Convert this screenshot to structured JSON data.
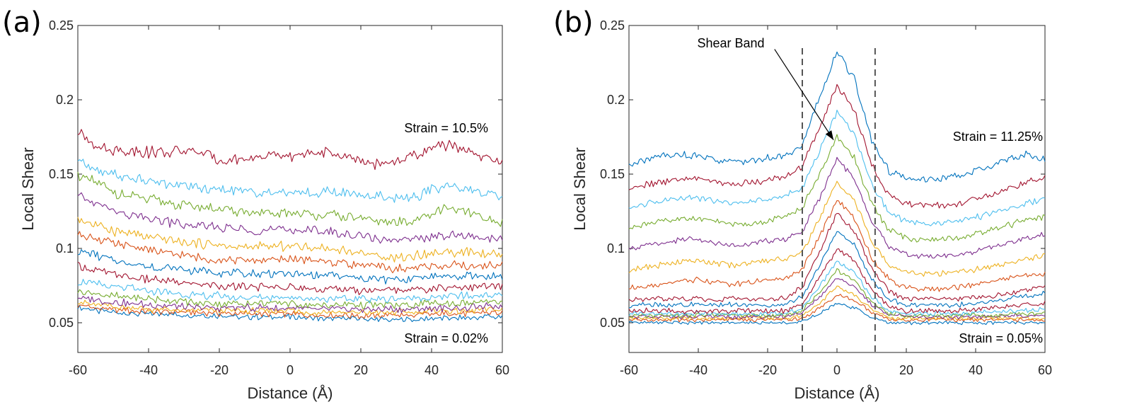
{
  "chart_data": [
    {
      "panel": "(a)",
      "type": "line",
      "xlabel": "Distance (Å)",
      "ylabel": "Local Shear",
      "xlim": [
        -60,
        60
      ],
      "ylim": [
        0.03,
        0.25
      ],
      "xticks": [
        -60,
        -40,
        -20,
        0,
        20,
        40,
        60
      ],
      "yticks": [
        0.05,
        0.1,
        0.15,
        0.2,
        0.25
      ],
      "ytick_labels": [
        "0.05",
        "0.1",
        "0.15",
        "0.2",
        "0.25"
      ],
      "annotations": {
        "top": "Strain = 10.5%",
        "bottom": "Strain = 0.02%"
      },
      "x": [
        -60,
        -55,
        -50,
        -45,
        -40,
        -35,
        -30,
        -25,
        -20,
        -15,
        -10,
        -5,
        0,
        5,
        10,
        15,
        20,
        25,
        30,
        35,
        40,
        45,
        50,
        55,
        60
      ],
      "series": [
        {
          "name": "s1",
          "color": "#0072bd",
          "values": [
            0.06,
            0.058,
            0.057,
            0.056,
            0.056,
            0.056,
            0.055,
            0.055,
            0.055,
            0.054,
            0.054,
            0.054,
            0.054,
            0.053,
            0.053,
            0.053,
            0.053,
            0.052,
            0.052,
            0.052,
            0.053,
            0.053,
            0.053,
            0.054,
            0.054
          ]
        },
        {
          "name": "s2",
          "color": "#d95319",
          "values": [
            0.062,
            0.06,
            0.059,
            0.058,
            0.058,
            0.057,
            0.057,
            0.057,
            0.056,
            0.056,
            0.056,
            0.056,
            0.056,
            0.055,
            0.055,
            0.055,
            0.055,
            0.055,
            0.055,
            0.055,
            0.056,
            0.056,
            0.056,
            0.057,
            0.057
          ]
        },
        {
          "name": "s3",
          "color": "#edb120",
          "values": [
            0.064,
            0.062,
            0.061,
            0.06,
            0.059,
            0.059,
            0.058,
            0.058,
            0.058,
            0.058,
            0.058,
            0.058,
            0.058,
            0.057,
            0.057,
            0.057,
            0.057,
            0.057,
            0.057,
            0.057,
            0.058,
            0.058,
            0.058,
            0.059,
            0.059
          ]
        },
        {
          "name": "s4",
          "color": "#7e2f8e",
          "values": [
            0.067,
            0.065,
            0.064,
            0.063,
            0.062,
            0.061,
            0.061,
            0.06,
            0.06,
            0.06,
            0.06,
            0.06,
            0.06,
            0.059,
            0.059,
            0.059,
            0.059,
            0.059,
            0.059,
            0.059,
            0.06,
            0.06,
            0.06,
            0.061,
            0.061
          ]
        },
        {
          "name": "s5",
          "color": "#77ac30",
          "values": [
            0.072,
            0.07,
            0.068,
            0.067,
            0.066,
            0.065,
            0.064,
            0.063,
            0.063,
            0.063,
            0.063,
            0.063,
            0.063,
            0.062,
            0.062,
            0.062,
            0.062,
            0.062,
            0.062,
            0.062,
            0.063,
            0.063,
            0.063,
            0.064,
            0.064
          ]
        },
        {
          "name": "s6",
          "color": "#4dbeee",
          "values": [
            0.078,
            0.076,
            0.074,
            0.073,
            0.071,
            0.07,
            0.069,
            0.068,
            0.068,
            0.067,
            0.067,
            0.067,
            0.067,
            0.066,
            0.066,
            0.066,
            0.066,
            0.066,
            0.066,
            0.067,
            0.067,
            0.068,
            0.068,
            0.068,
            0.069
          ]
        },
        {
          "name": "s7",
          "color": "#a2142f",
          "values": [
            0.088,
            0.085,
            0.083,
            0.081,
            0.079,
            0.078,
            0.077,
            0.076,
            0.075,
            0.074,
            0.074,
            0.074,
            0.074,
            0.073,
            0.073,
            0.072,
            0.072,
            0.072,
            0.072,
            0.073,
            0.073,
            0.074,
            0.074,
            0.074,
            0.075
          ]
        },
        {
          "name": "s8",
          "color": "#0072bd",
          "values": [
            0.098,
            0.095,
            0.092,
            0.09,
            0.088,
            0.087,
            0.086,
            0.085,
            0.084,
            0.083,
            0.083,
            0.083,
            0.083,
            0.082,
            0.082,
            0.081,
            0.08,
            0.079,
            0.079,
            0.08,
            0.081,
            0.081,
            0.081,
            0.081,
            0.082
          ]
        },
        {
          "name": "s9",
          "color": "#d95319",
          "values": [
            0.11,
            0.107,
            0.103,
            0.101,
            0.099,
            0.097,
            0.095,
            0.094,
            0.093,
            0.092,
            0.092,
            0.092,
            0.093,
            0.092,
            0.092,
            0.09,
            0.089,
            0.087,
            0.086,
            0.087,
            0.088,
            0.089,
            0.088,
            0.088,
            0.089
          ]
        },
        {
          "name": "s10",
          "color": "#edb120",
          "values": [
            0.12,
            0.116,
            0.112,
            0.11,
            0.107,
            0.106,
            0.104,
            0.103,
            0.102,
            0.101,
            0.101,
            0.101,
            0.102,
            0.101,
            0.101,
            0.099,
            0.097,
            0.095,
            0.094,
            0.095,
            0.097,
            0.098,
            0.097,
            0.096,
            0.096
          ]
        },
        {
          "name": "s11",
          "color": "#7e2f8e",
          "values": [
            0.135,
            0.13,
            0.125,
            0.122,
            0.12,
            0.118,
            0.116,
            0.115,
            0.114,
            0.113,
            0.112,
            0.112,
            0.113,
            0.112,
            0.112,
            0.11,
            0.108,
            0.106,
            0.105,
            0.106,
            0.108,
            0.109,
            0.108,
            0.107,
            0.107
          ]
        },
        {
          "name": "s12",
          "color": "#77ac30",
          "values": [
            0.15,
            0.144,
            0.138,
            0.135,
            0.133,
            0.131,
            0.129,
            0.128,
            0.126,
            0.125,
            0.124,
            0.123,
            0.124,
            0.123,
            0.123,
            0.121,
            0.12,
            0.118,
            0.117,
            0.119,
            0.123,
            0.127,
            0.124,
            0.12,
            0.117
          ]
        },
        {
          "name": "s13",
          "color": "#4dbeee",
          "values": [
            0.16,
            0.154,
            0.15,
            0.147,
            0.145,
            0.143,
            0.142,
            0.141,
            0.14,
            0.139,
            0.138,
            0.137,
            0.138,
            0.137,
            0.138,
            0.137,
            0.136,
            0.135,
            0.134,
            0.135,
            0.139,
            0.143,
            0.14,
            0.137,
            0.135
          ]
        },
        {
          "name": "s14",
          "color": "#a2142f",
          "values": [
            0.178,
            0.17,
            0.166,
            0.166,
            0.165,
            0.165,
            0.166,
            0.164,
            0.16,
            0.16,
            0.161,
            0.162,
            0.162,
            0.163,
            0.165,
            0.162,
            0.158,
            0.157,
            0.158,
            0.162,
            0.168,
            0.17,
            0.166,
            0.161,
            0.158
          ]
        }
      ]
    },
    {
      "panel": "(b)",
      "type": "line",
      "xlabel": "Distance (Å)",
      "ylabel": "Local Shear",
      "xlim": [
        -60,
        60
      ],
      "ylim": [
        0.03,
        0.25
      ],
      "xticks": [
        -60,
        -40,
        -20,
        0,
        20,
        40,
        60
      ],
      "yticks": [
        0.05,
        0.1,
        0.15,
        0.2,
        0.25
      ],
      "ytick_labels": [
        "0.05",
        "0.1",
        "0.15",
        "0.2",
        "0.25"
      ],
      "annotations": {
        "top": "Strain = 11.25%",
        "bottom": "Strain = 0.05%",
        "arrow": "Shear Band"
      },
      "band_lines": [
        -10,
        11
      ],
      "arrow_tail": {
        "x": -18,
        "y": 0.234
      },
      "arrow_head": {
        "x": -1,
        "y": 0.173
      },
      "x": [
        -60,
        -55,
        -50,
        -45,
        -40,
        -35,
        -30,
        -25,
        -20,
        -15,
        -10,
        -5,
        0,
        5,
        10,
        15,
        20,
        25,
        30,
        35,
        40,
        45,
        50,
        55,
        60
      ],
      "series": [
        {
          "name": "s1",
          "color": "#0072bd",
          "values": [
            0.05,
            0.05,
            0.05,
            0.05,
            0.05,
            0.05,
            0.05,
            0.05,
            0.05,
            0.05,
            0.051,
            0.056,
            0.063,
            0.06,
            0.054,
            0.05,
            0.05,
            0.05,
            0.05,
            0.05,
            0.05,
            0.05,
            0.05,
            0.05,
            0.05
          ]
        },
        {
          "name": "s2",
          "color": "#d95319",
          "values": [
            0.052,
            0.052,
            0.052,
            0.052,
            0.052,
            0.052,
            0.052,
            0.052,
            0.052,
            0.052,
            0.053,
            0.06,
            0.069,
            0.065,
            0.057,
            0.052,
            0.052,
            0.052,
            0.052,
            0.052,
            0.052,
            0.052,
            0.052,
            0.052,
            0.052
          ]
        },
        {
          "name": "s3",
          "color": "#edb120",
          "values": [
            0.053,
            0.053,
            0.053,
            0.053,
            0.053,
            0.053,
            0.053,
            0.053,
            0.053,
            0.053,
            0.055,
            0.063,
            0.074,
            0.069,
            0.059,
            0.053,
            0.053,
            0.053,
            0.053,
            0.053,
            0.053,
            0.053,
            0.053,
            0.053,
            0.053
          ]
        },
        {
          "name": "s4",
          "color": "#7e2f8e",
          "values": [
            0.054,
            0.054,
            0.054,
            0.054,
            0.054,
            0.054,
            0.054,
            0.054,
            0.054,
            0.054,
            0.057,
            0.067,
            0.08,
            0.074,
            0.062,
            0.055,
            0.054,
            0.054,
            0.054,
            0.054,
            0.054,
            0.054,
            0.055,
            0.055,
            0.055
          ]
        },
        {
          "name": "s5",
          "color": "#77ac30",
          "values": [
            0.055,
            0.055,
            0.055,
            0.055,
            0.055,
            0.055,
            0.055,
            0.055,
            0.055,
            0.055,
            0.058,
            0.07,
            0.085,
            0.079,
            0.064,
            0.056,
            0.055,
            0.055,
            0.055,
            0.055,
            0.055,
            0.055,
            0.056,
            0.056,
            0.057
          ]
        },
        {
          "name": "s6",
          "color": "#4dbeee",
          "values": [
            0.056,
            0.056,
            0.056,
            0.056,
            0.056,
            0.056,
            0.056,
            0.056,
            0.056,
            0.056,
            0.06,
            0.074,
            0.091,
            0.084,
            0.067,
            0.058,
            0.056,
            0.056,
            0.056,
            0.056,
            0.057,
            0.057,
            0.058,
            0.058,
            0.059
          ]
        },
        {
          "name": "s7",
          "color": "#a2142f",
          "values": [
            0.058,
            0.058,
            0.058,
            0.058,
            0.058,
            0.058,
            0.058,
            0.058,
            0.058,
            0.058,
            0.063,
            0.08,
            0.1,
            0.092,
            0.072,
            0.061,
            0.058,
            0.058,
            0.058,
            0.058,
            0.059,
            0.06,
            0.061,
            0.062,
            0.063
          ]
        },
        {
          "name": "s8",
          "color": "#0072bd",
          "values": [
            0.061,
            0.062,
            0.062,
            0.062,
            0.062,
            0.062,
            0.062,
            0.062,
            0.062,
            0.062,
            0.068,
            0.088,
            0.112,
            0.102,
            0.079,
            0.066,
            0.062,
            0.062,
            0.062,
            0.062,
            0.063,
            0.064,
            0.066,
            0.068,
            0.07
          ]
        },
        {
          "name": "s9",
          "color": "#a2142f",
          "values": [
            0.065,
            0.066,
            0.066,
            0.066,
            0.066,
            0.066,
            0.066,
            0.066,
            0.066,
            0.066,
            0.074,
            0.098,
            0.124,
            0.112,
            0.087,
            0.071,
            0.066,
            0.066,
            0.066,
            0.066,
            0.067,
            0.068,
            0.07,
            0.072,
            0.074
          ]
        },
        {
          "name": "s10",
          "color": "#d95319",
          "values": [
            0.073,
            0.074,
            0.076,
            0.078,
            0.079,
            0.077,
            0.076,
            0.077,
            0.079,
            0.08,
            0.086,
            0.108,
            0.133,
            0.12,
            0.094,
            0.079,
            0.074,
            0.073,
            0.073,
            0.074,
            0.076,
            0.078,
            0.08,
            0.082,
            0.083
          ]
        },
        {
          "name": "s11",
          "color": "#edb120",
          "values": [
            0.085,
            0.087,
            0.089,
            0.091,
            0.092,
            0.09,
            0.089,
            0.09,
            0.092,
            0.093,
            0.098,
            0.12,
            0.145,
            0.132,
            0.105,
            0.089,
            0.084,
            0.083,
            0.083,
            0.084,
            0.086,
            0.088,
            0.09,
            0.093,
            0.096
          ]
        },
        {
          "name": "s12",
          "color": "#7e2f8e",
          "values": [
            0.1,
            0.102,
            0.104,
            0.106,
            0.106,
            0.104,
            0.102,
            0.103,
            0.105,
            0.106,
            0.112,
            0.134,
            0.16,
            0.147,
            0.118,
            0.101,
            0.096,
            0.095,
            0.095,
            0.096,
            0.098,
            0.101,
            0.104,
            0.107,
            0.11
          ]
        },
        {
          "name": "s13",
          "color": "#77ac30",
          "values": [
            0.114,
            0.116,
            0.118,
            0.12,
            0.12,
            0.118,
            0.116,
            0.117,
            0.119,
            0.121,
            0.127,
            0.15,
            0.175,
            0.161,
            0.13,
            0.112,
            0.107,
            0.106,
            0.106,
            0.107,
            0.11,
            0.113,
            0.116,
            0.119,
            0.122
          ]
        },
        {
          "name": "s14",
          "color": "#4dbeee",
          "values": [
            0.127,
            0.13,
            0.132,
            0.134,
            0.134,
            0.132,
            0.13,
            0.131,
            0.133,
            0.135,
            0.141,
            0.166,
            0.192,
            0.177,
            0.143,
            0.124,
            0.118,
            0.117,
            0.117,
            0.118,
            0.121,
            0.124,
            0.127,
            0.131,
            0.134
          ]
        },
        {
          "name": "s15",
          "color": "#a2142f",
          "values": [
            0.14,
            0.143,
            0.145,
            0.147,
            0.147,
            0.145,
            0.143,
            0.144,
            0.146,
            0.148,
            0.155,
            0.182,
            0.21,
            0.194,
            0.156,
            0.136,
            0.13,
            0.129,
            0.129,
            0.13,
            0.133,
            0.137,
            0.141,
            0.145,
            0.148
          ]
        },
        {
          "name": "s16",
          "color": "#0072bd",
          "values": [
            0.156,
            0.16,
            0.162,
            0.163,
            0.162,
            0.16,
            0.158,
            0.159,
            0.161,
            0.163,
            0.17,
            0.202,
            0.232,
            0.214,
            0.173,
            0.152,
            0.147,
            0.146,
            0.147,
            0.149,
            0.152,
            0.156,
            0.16,
            0.163,
            0.16
          ]
        }
      ]
    }
  ]
}
